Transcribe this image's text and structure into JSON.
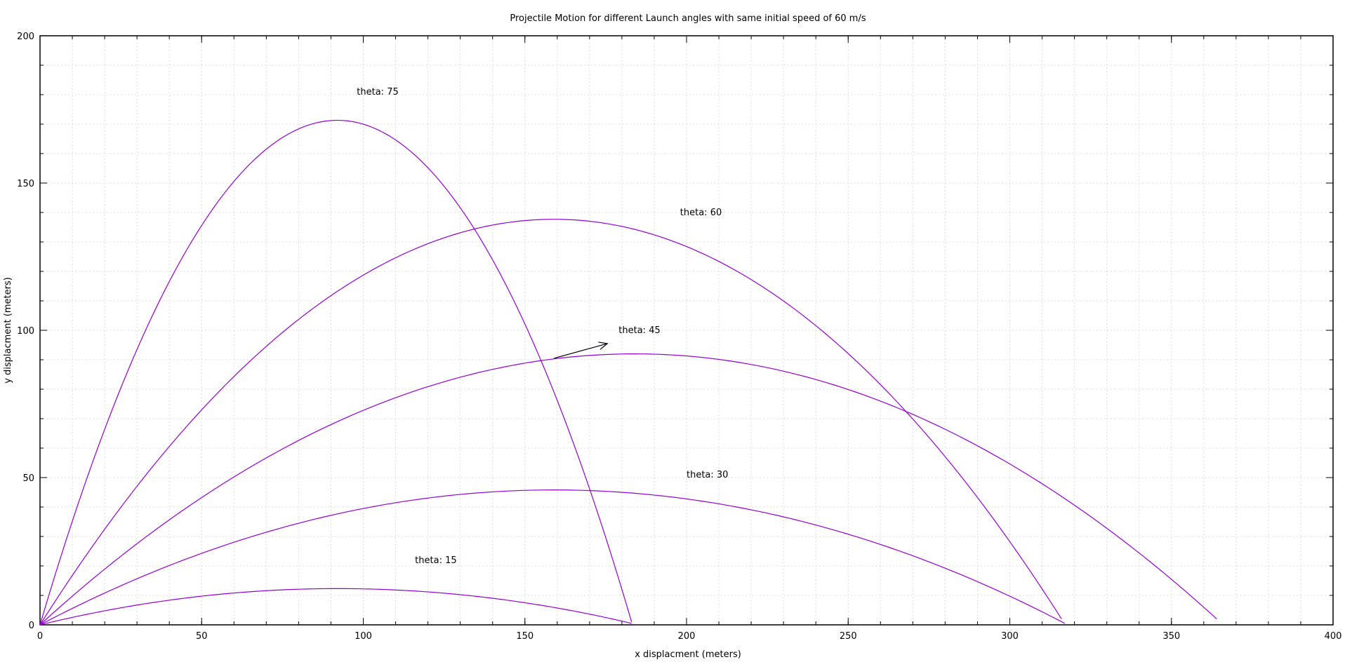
{
  "chart_data": {
    "type": "line",
    "title": "Projectile Motion for different Launch angles with same initial speed of 60 m/s",
    "xlabel": "x displacment (meters)",
    "ylabel": "y displacment (meters)",
    "xlim": [
      0,
      400
    ],
    "ylim": [
      0,
      200
    ],
    "x_ticks": [
      0,
      50,
      100,
      150,
      200,
      250,
      300,
      350,
      400
    ],
    "y_ticks": [
      0,
      50,
      100,
      150,
      200
    ],
    "x_minor_step": 10,
    "y_minor_step": 10,
    "grid": true,
    "line_color": "#9400d3",
    "series": [
      {
        "name": "theta: 15",
        "angle_deg": 15,
        "x": [
          0,
          30,
          60,
          92,
          120,
          150,
          183
        ],
        "y": [
          0,
          7,
          11.2,
          12.3,
          11,
          7.2,
          0.5
        ]
      },
      {
        "name": "theta: 30",
        "angle_deg": 30,
        "x": [
          0,
          40,
          80,
          120,
          159,
          200,
          240,
          280,
          317
        ],
        "y": [
          0,
          19.5,
          34,
          43,
          45.8,
          43,
          34.5,
          20.5,
          0.5
        ]
      },
      {
        "name": "theta: 45",
        "angle_deg": 45,
        "x": [
          0,
          45,
          90,
          135,
          184,
          230,
          275,
          320,
          364
        ],
        "y": [
          0,
          40,
          69,
          86,
          92,
          87,
          71,
          45,
          2
        ]
      },
      {
        "name": "theta: 60",
        "angle_deg": 60,
        "x": [
          0,
          40,
          80,
          120,
          159,
          200,
          240,
          280,
          316
        ],
        "y": [
          0,
          63,
          103,
          128,
          137.7,
          129,
          104,
          62,
          2
        ]
      },
      {
        "name": "theta: 75",
        "angle_deg": 75,
        "x": [
          0,
          23,
          46,
          69,
          92,
          115,
          138,
          160,
          183
        ],
        "y": [
          0,
          75,
          128,
          160,
          171.3,
          161,
          129,
          76,
          1
        ]
      }
    ],
    "annotations": [
      {
        "text": "theta: 75",
        "x": 98,
        "y": 180
      },
      {
        "text": "theta: 60",
        "x": 198,
        "y": 139
      },
      {
        "text": "theta: 45",
        "x": 179,
        "y": 99
      },
      {
        "text": "theta: 30",
        "x": 200,
        "y": 50
      },
      {
        "text": "theta: 15",
        "x": 116,
        "y": 21
      }
    ],
    "arrow": {
      "from": [
        159,
        90.5
      ],
      "to": [
        175.5,
        95.5
      ],
      "color": "#000000"
    }
  }
}
